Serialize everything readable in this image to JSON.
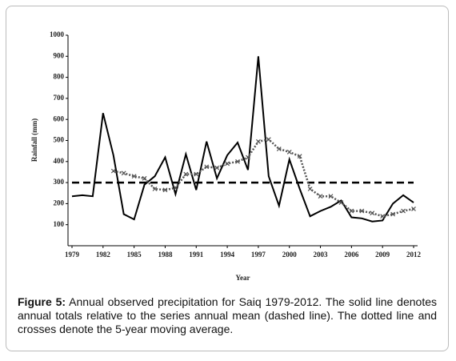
{
  "chart_data": {
    "type": "line",
    "x": [
      1979,
      1980,
      1981,
      1982,
      1983,
      1984,
      1985,
      1986,
      1987,
      1988,
      1989,
      1990,
      1991,
      1992,
      1993,
      1994,
      1995,
      1996,
      1997,
      1998,
      1999,
      2000,
      2001,
      2002,
      2003,
      2004,
      2005,
      2006,
      2007,
      2008,
      2009,
      2010,
      2011,
      2012
    ],
    "series": [
      {
        "style": "solid",
        "color": "#000000",
        "values": [
          235,
          240,
          235,
          630,
          430,
          150,
          125,
          290,
          330,
          420,
          245,
          435,
          265,
          495,
          320,
          430,
          490,
          360,
          900,
          330,
          190,
          410,
          270,
          140,
          165,
          185,
          215,
          135,
          130,
          115,
          120,
          200,
          240,
          205
        ]
      },
      {
        "style": "dashed",
        "color": "#000000",
        "values": [
          300,
          300,
          300,
          300,
          300,
          300,
          300,
          300,
          300,
          300,
          300,
          300,
          300,
          300,
          300,
          300,
          300,
          300,
          300,
          300,
          300,
          300,
          300,
          300,
          300,
          300,
          300,
          300,
          300,
          300,
          300,
          300,
          300,
          300
        ]
      },
      {
        "style": "dotted",
        "color": "#555555",
        "values": [
          null,
          null,
          null,
          null,
          355,
          345,
          330,
          320,
          270,
          265,
          275,
          340,
          340,
          375,
          370,
          390,
          400,
          420,
          495,
          505,
          460,
          445,
          425,
          270,
          235,
          235,
          205,
          165,
          165,
          155,
          140,
          150,
          165,
          175
        ]
      }
    ],
    "xlim": [
      1979,
      2012
    ],
    "xticks": [
      1979,
      1982,
      1985,
      1988,
      1991,
      1994,
      1997,
      2000,
      2003,
      2006,
      2009,
      2012
    ],
    "ylim": [
      0,
      1000
    ],
    "yticks": [
      100,
      200,
      300,
      400,
      500,
      600,
      700,
      800,
      900,
      1000
    ],
    "xlabel": "Year",
    "ylabel": "Rainfall (mm)"
  },
  "caption": {
    "label": "Figure 5:",
    "text": " Annual observed precipitation for Saiq 1979-2012. The solid line denotes annual totals relative to the series annual mean (dashed line). The dotted line and crosses denote the 5-year moving average."
  }
}
